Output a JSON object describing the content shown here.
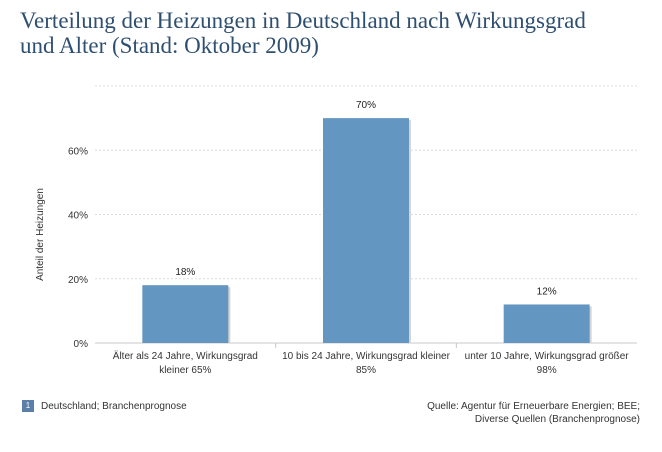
{
  "title_lines": [
    "Verteilung der Heizungen in Deutschland nach Wirkungsgrad",
    "und Alter (Stand: Oktober 2009)"
  ],
  "footnote": {
    "number": "1",
    "text": "Deutschland; Branchenprognose"
  },
  "source_lines": [
    "Quelle: Agentur für Erneuerbare Energien; BEE;",
    "Diverse Quellen (Branchenprognose)"
  ],
  "colors": {
    "bar": "#6496c2",
    "title": "#2f4f70",
    "grid": "#dcdcdc",
    "footnote_badge": "#5b7fa8"
  },
  "chart_data": {
    "type": "bar",
    "title": "Verteilung der Heizungen in Deutschland nach Wirkungsgrad und Alter (Stand: Oktober 2009)",
    "xlabel": "",
    "ylabel": "Anteil der Heizungen",
    "categories": [
      [
        "Älter als 24 Jahre, Wirkungsgrad",
        "kleiner 65%"
      ],
      [
        "10 bis 24 Jahre, Wirkungsgrad kleiner",
        "85%"
      ],
      [
        "unter 10 Jahre, Wirkungsgrad größer",
        "98%"
      ]
    ],
    "values": [
      18,
      70,
      12
    ],
    "value_labels": [
      "18%",
      "70%",
      "12%"
    ],
    "ylim": [
      0,
      80
    ],
    "yticks": [
      0,
      20,
      40,
      60
    ],
    "ytick_labels": [
      "0%",
      "20%",
      "40%",
      "60%"
    ],
    "grid": true,
    "legend": "none"
  }
}
